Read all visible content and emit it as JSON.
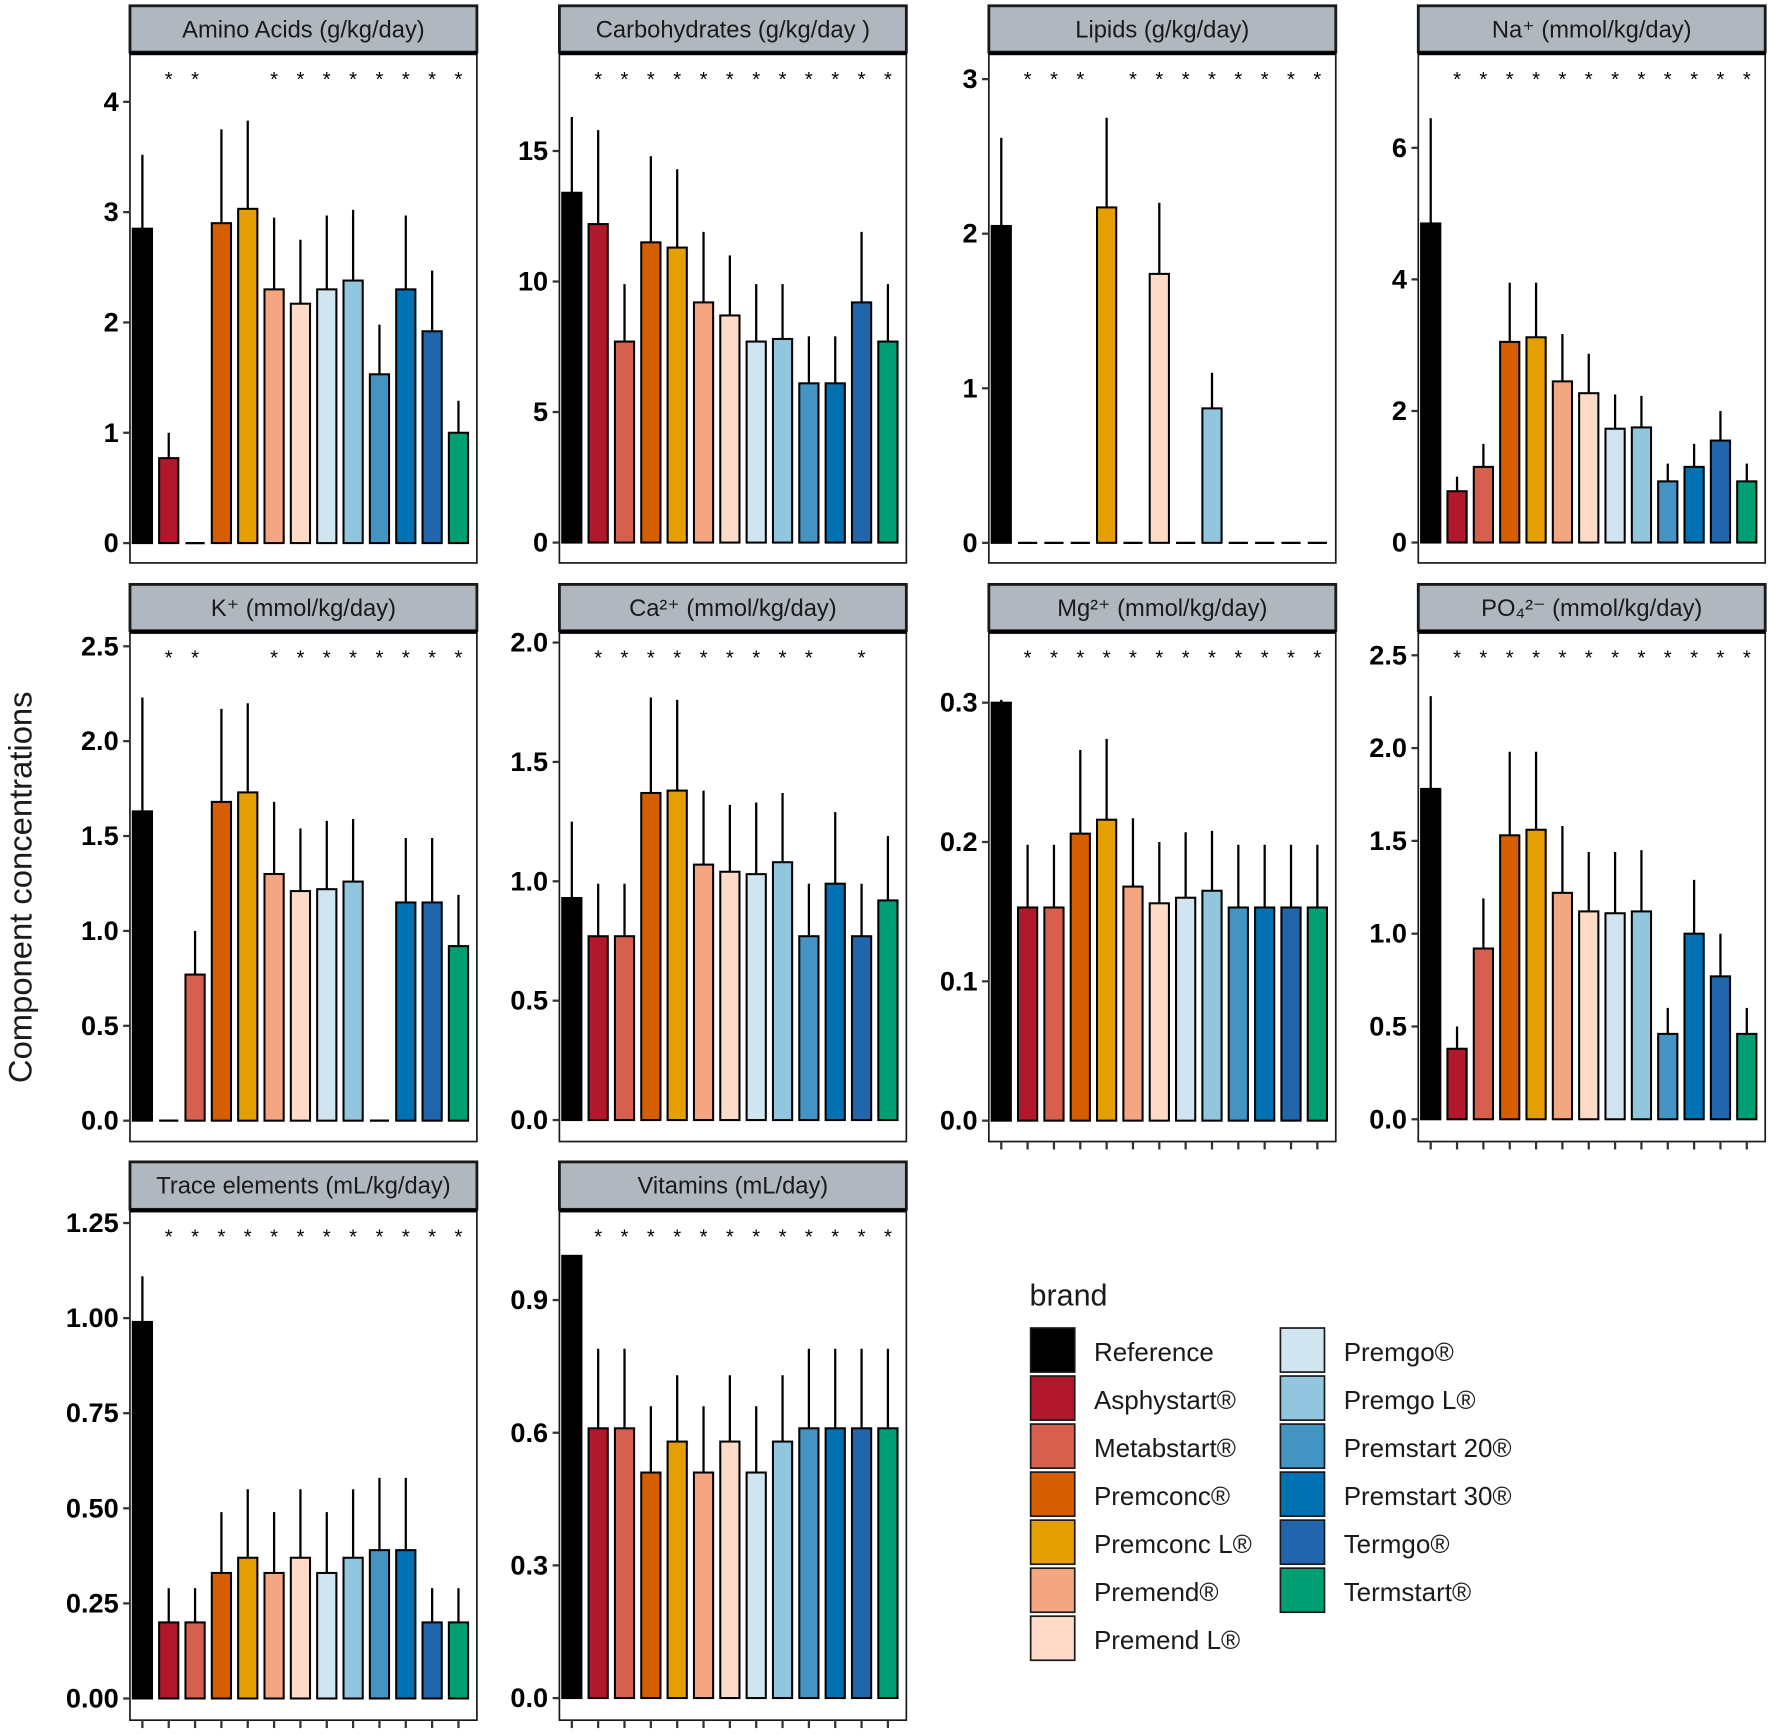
{
  "chart_data": {
    "type": "bar",
    "ylabel": "Component concentrations",
    "xlabel": "",
    "legend": {
      "title": "brand",
      "placement": "bottom-right"
    },
    "categories": [
      "Reference",
      "Asphystart®",
      "Metabstart®",
      "Premconc®",
      "Premconc L®",
      "Premend®",
      "Premend L®",
      "Premgo®",
      "Premgo L®",
      "Premstart 20®",
      "Premstart 30®",
      "Termgo®",
      "Termstart®"
    ],
    "colors": [
      "#000000",
      "#b2182b",
      "#d6604d",
      "#d55e00",
      "#e69f00",
      "#f4a582",
      "#fddbc7",
      "#d1e5f0",
      "#92c5de",
      "#4393c3",
      "#0072b2",
      "#2166ac",
      "#009e73"
    ],
    "significance_marker": "*",
    "panels": [
      {
        "title": "Amino Acids (g/kg/day)",
        "ylim": [
          -0.18,
          4.43
        ],
        "ticks": [
          0,
          1,
          2,
          3,
          4
        ],
        "tick_labels": [
          "0",
          "1",
          "2",
          "3",
          "4"
        ],
        "values": [
          2.85,
          0.77,
          0,
          2.9,
          3.03,
          2.3,
          2.17,
          2.3,
          2.38,
          1.53,
          2.3,
          1.92,
          1.0
        ],
        "error_upper": [
          3.52,
          1.0,
          null,
          3.75,
          3.83,
          2.95,
          2.75,
          2.97,
          3.02,
          1.98,
          2.97,
          2.47,
          1.29
        ],
        "significant": [
          false,
          true,
          true,
          false,
          false,
          true,
          true,
          true,
          true,
          true,
          true,
          true,
          true
        ]
      },
      {
        "title": "Carbohydrates (g/kg/day )",
        "ylim": [
          -0.78,
          18.7
        ],
        "ticks": [
          0,
          5,
          10,
          15
        ],
        "tick_labels": [
          "0",
          "5",
          "10",
          "15"
        ],
        "values": [
          13.4,
          12.2,
          7.7,
          11.5,
          11.3,
          9.2,
          8.7,
          7.7,
          7.8,
          6.1,
          6.1,
          9.2,
          7.7
        ],
        "error_upper": [
          16.3,
          15.8,
          9.9,
          14.8,
          14.3,
          11.9,
          11.0,
          9.9,
          9.9,
          7.9,
          7.9,
          11.9,
          9.9
        ],
        "significant": [
          false,
          true,
          true,
          true,
          true,
          true,
          true,
          true,
          true,
          true,
          true,
          true,
          true
        ]
      },
      {
        "title": "Lipids (g/kg/day)",
        "ylim": [
          -0.13,
          3.16
        ],
        "ticks": [
          0,
          1,
          2,
          3
        ],
        "tick_labels": [
          "0",
          "1",
          "2",
          "3"
        ],
        "values": [
          2.05,
          0,
          0,
          0,
          2.17,
          0,
          1.74,
          0,
          0.87,
          0,
          0,
          0,
          0
        ],
        "error_upper": [
          2.62,
          null,
          null,
          null,
          2.75,
          null,
          2.2,
          null,
          1.1,
          null,
          null,
          null,
          null
        ],
        "significant": [
          false,
          true,
          true,
          true,
          false,
          true,
          true,
          true,
          true,
          true,
          true,
          true,
          true
        ]
      },
      {
        "title": "Na⁺ (mmol/kg/day)",
        "ylim": [
          -0.31,
          7.42
        ],
        "ticks": [
          0,
          2,
          4,
          6
        ],
        "tick_labels": [
          "0",
          "2",
          "4",
          "6"
        ],
        "values": [
          4.85,
          0.78,
          1.15,
          3.05,
          3.12,
          2.45,
          2.27,
          1.73,
          1.75,
          0.93,
          1.15,
          1.55,
          0.93
        ],
        "error_upper": [
          6.45,
          1.0,
          1.5,
          3.95,
          3.95,
          3.17,
          2.87,
          2.25,
          2.23,
          1.2,
          1.5,
          2.0,
          1.2
        ],
        "significant": [
          false,
          true,
          true,
          true,
          true,
          true,
          true,
          true,
          true,
          true,
          true,
          true,
          true
        ]
      },
      {
        "title": "K⁺ (mmol/kg/day)",
        "ylim": [
          -0.11,
          2.57
        ],
        "ticks": [
          0,
          0.5,
          1,
          1.5,
          2,
          2.5
        ],
        "tick_labels": [
          "0.0",
          "0.5",
          "1.0",
          "1.5",
          "2.0",
          "2.5"
        ],
        "values": [
          1.63,
          0,
          0.77,
          1.68,
          1.73,
          1.3,
          1.21,
          1.22,
          1.26,
          0,
          1.15,
          1.15,
          0.92
        ],
        "error_upper": [
          2.23,
          null,
          1.0,
          2.17,
          2.2,
          1.68,
          1.54,
          1.58,
          1.59,
          null,
          1.49,
          1.49,
          1.19
        ],
        "significant": [
          false,
          true,
          true,
          false,
          false,
          true,
          true,
          true,
          true,
          true,
          true,
          true,
          true
        ]
      },
      {
        "title": "Ca²⁺ (mmol/kg/day)",
        "ylim": [
          -0.09,
          2.04
        ],
        "ticks": [
          0,
          0.5,
          1,
          1.5,
          2
        ],
        "tick_labels": [
          "0.0",
          "0.5",
          "1.0",
          "1.5",
          "2.0"
        ],
        "values": [
          0.93,
          0.77,
          0.77,
          1.37,
          1.38,
          1.07,
          1.04,
          1.03,
          1.08,
          0.77,
          0.99,
          0.77,
          0.92
        ],
        "error_upper": [
          1.25,
          0.99,
          0.99,
          1.77,
          1.76,
          1.38,
          1.32,
          1.33,
          1.37,
          0.99,
          1.29,
          0.99,
          1.19
        ],
        "significant": [
          false,
          true,
          true,
          true,
          true,
          true,
          true,
          true,
          true,
          true,
          false,
          true,
          false
        ]
      },
      {
        "title": "Mg²⁺ (mmol/kg/day)",
        "ylim": [
          -0.015,
          0.35
        ],
        "ticks": [
          0,
          0.1,
          0.2,
          0.3
        ],
        "tick_labels": [
          "0.0",
          "0.1",
          "0.2",
          "0.3"
        ],
        "values": [
          0.3,
          0.153,
          0.153,
          0.206,
          0.216,
          0.168,
          0.156,
          0.16,
          0.165,
          0.153,
          0.153,
          0.153,
          0.153
        ],
        "error_upper": [
          0.302,
          0.198,
          0.198,
          0.266,
          0.274,
          0.217,
          0.2,
          0.207,
          0.208,
          0.198,
          0.198,
          0.198,
          0.198
        ],
        "significant": [
          false,
          true,
          true,
          true,
          true,
          true,
          true,
          true,
          true,
          true,
          true,
          true,
          true
        ]
      },
      {
        "title": "PO₄²⁻ (mmol/kg/day)",
        "ylim": [
          -0.12,
          2.62
        ],
        "ticks": [
          0,
          0.5,
          1,
          1.5,
          2,
          2.5
        ],
        "tick_labels": [
          "0.0",
          "0.5",
          "1.0",
          "1.5",
          "2.0",
          "2.5"
        ],
        "values": [
          1.78,
          0.38,
          0.92,
          1.53,
          1.56,
          1.22,
          1.12,
          1.11,
          1.12,
          0.46,
          1.0,
          0.77,
          0.46
        ],
        "error_upper": [
          2.28,
          0.5,
          1.19,
          1.98,
          1.98,
          1.58,
          1.44,
          1.44,
          1.45,
          0.6,
          1.29,
          1.0,
          0.6
        ],
        "significant": [
          false,
          true,
          true,
          true,
          true,
          true,
          true,
          true,
          true,
          true,
          true,
          true,
          true
        ]
      },
      {
        "title": "Trace elements (mL/kg/day)",
        "ylim": [
          -0.057,
          1.28
        ],
        "ticks": [
          0,
          0.25,
          0.5,
          0.75,
          1,
          1.25
        ],
        "tick_labels": [
          "0.00",
          "0.25",
          "0.50",
          "0.75",
          "1.00",
          "1.25"
        ],
        "values": [
          0.99,
          0.2,
          0.2,
          0.33,
          0.37,
          0.33,
          0.37,
          0.33,
          0.37,
          0.39,
          0.39,
          0.2,
          0.2
        ],
        "error_upper": [
          1.11,
          0.29,
          0.29,
          0.49,
          0.55,
          0.49,
          0.55,
          0.49,
          0.55,
          0.58,
          0.58,
          0.29,
          0.29
        ],
        "significant": [
          false,
          true,
          true,
          true,
          true,
          true,
          true,
          true,
          true,
          true,
          true,
          true,
          true
        ]
      },
      {
        "title": "Vitamins (mL/day)",
        "ylim": [
          -0.05,
          1.1
        ],
        "ticks": [
          0,
          0.3,
          0.6,
          0.9
        ],
        "tick_labels": [
          "0.0",
          "0.3",
          "0.6",
          "0.9"
        ],
        "values": [
          1.0,
          0.61,
          0.61,
          0.51,
          0.58,
          0.51,
          0.58,
          0.51,
          0.58,
          0.61,
          0.61,
          0.61,
          0.61
        ],
        "error_upper": [
          null,
          0.79,
          0.79,
          0.66,
          0.73,
          0.66,
          0.73,
          0.66,
          0.73,
          0.79,
          0.79,
          0.79,
          0.79
        ],
        "significant": [
          false,
          true,
          true,
          true,
          true,
          true,
          true,
          true,
          true,
          true,
          true,
          true,
          true
        ]
      }
    ]
  }
}
